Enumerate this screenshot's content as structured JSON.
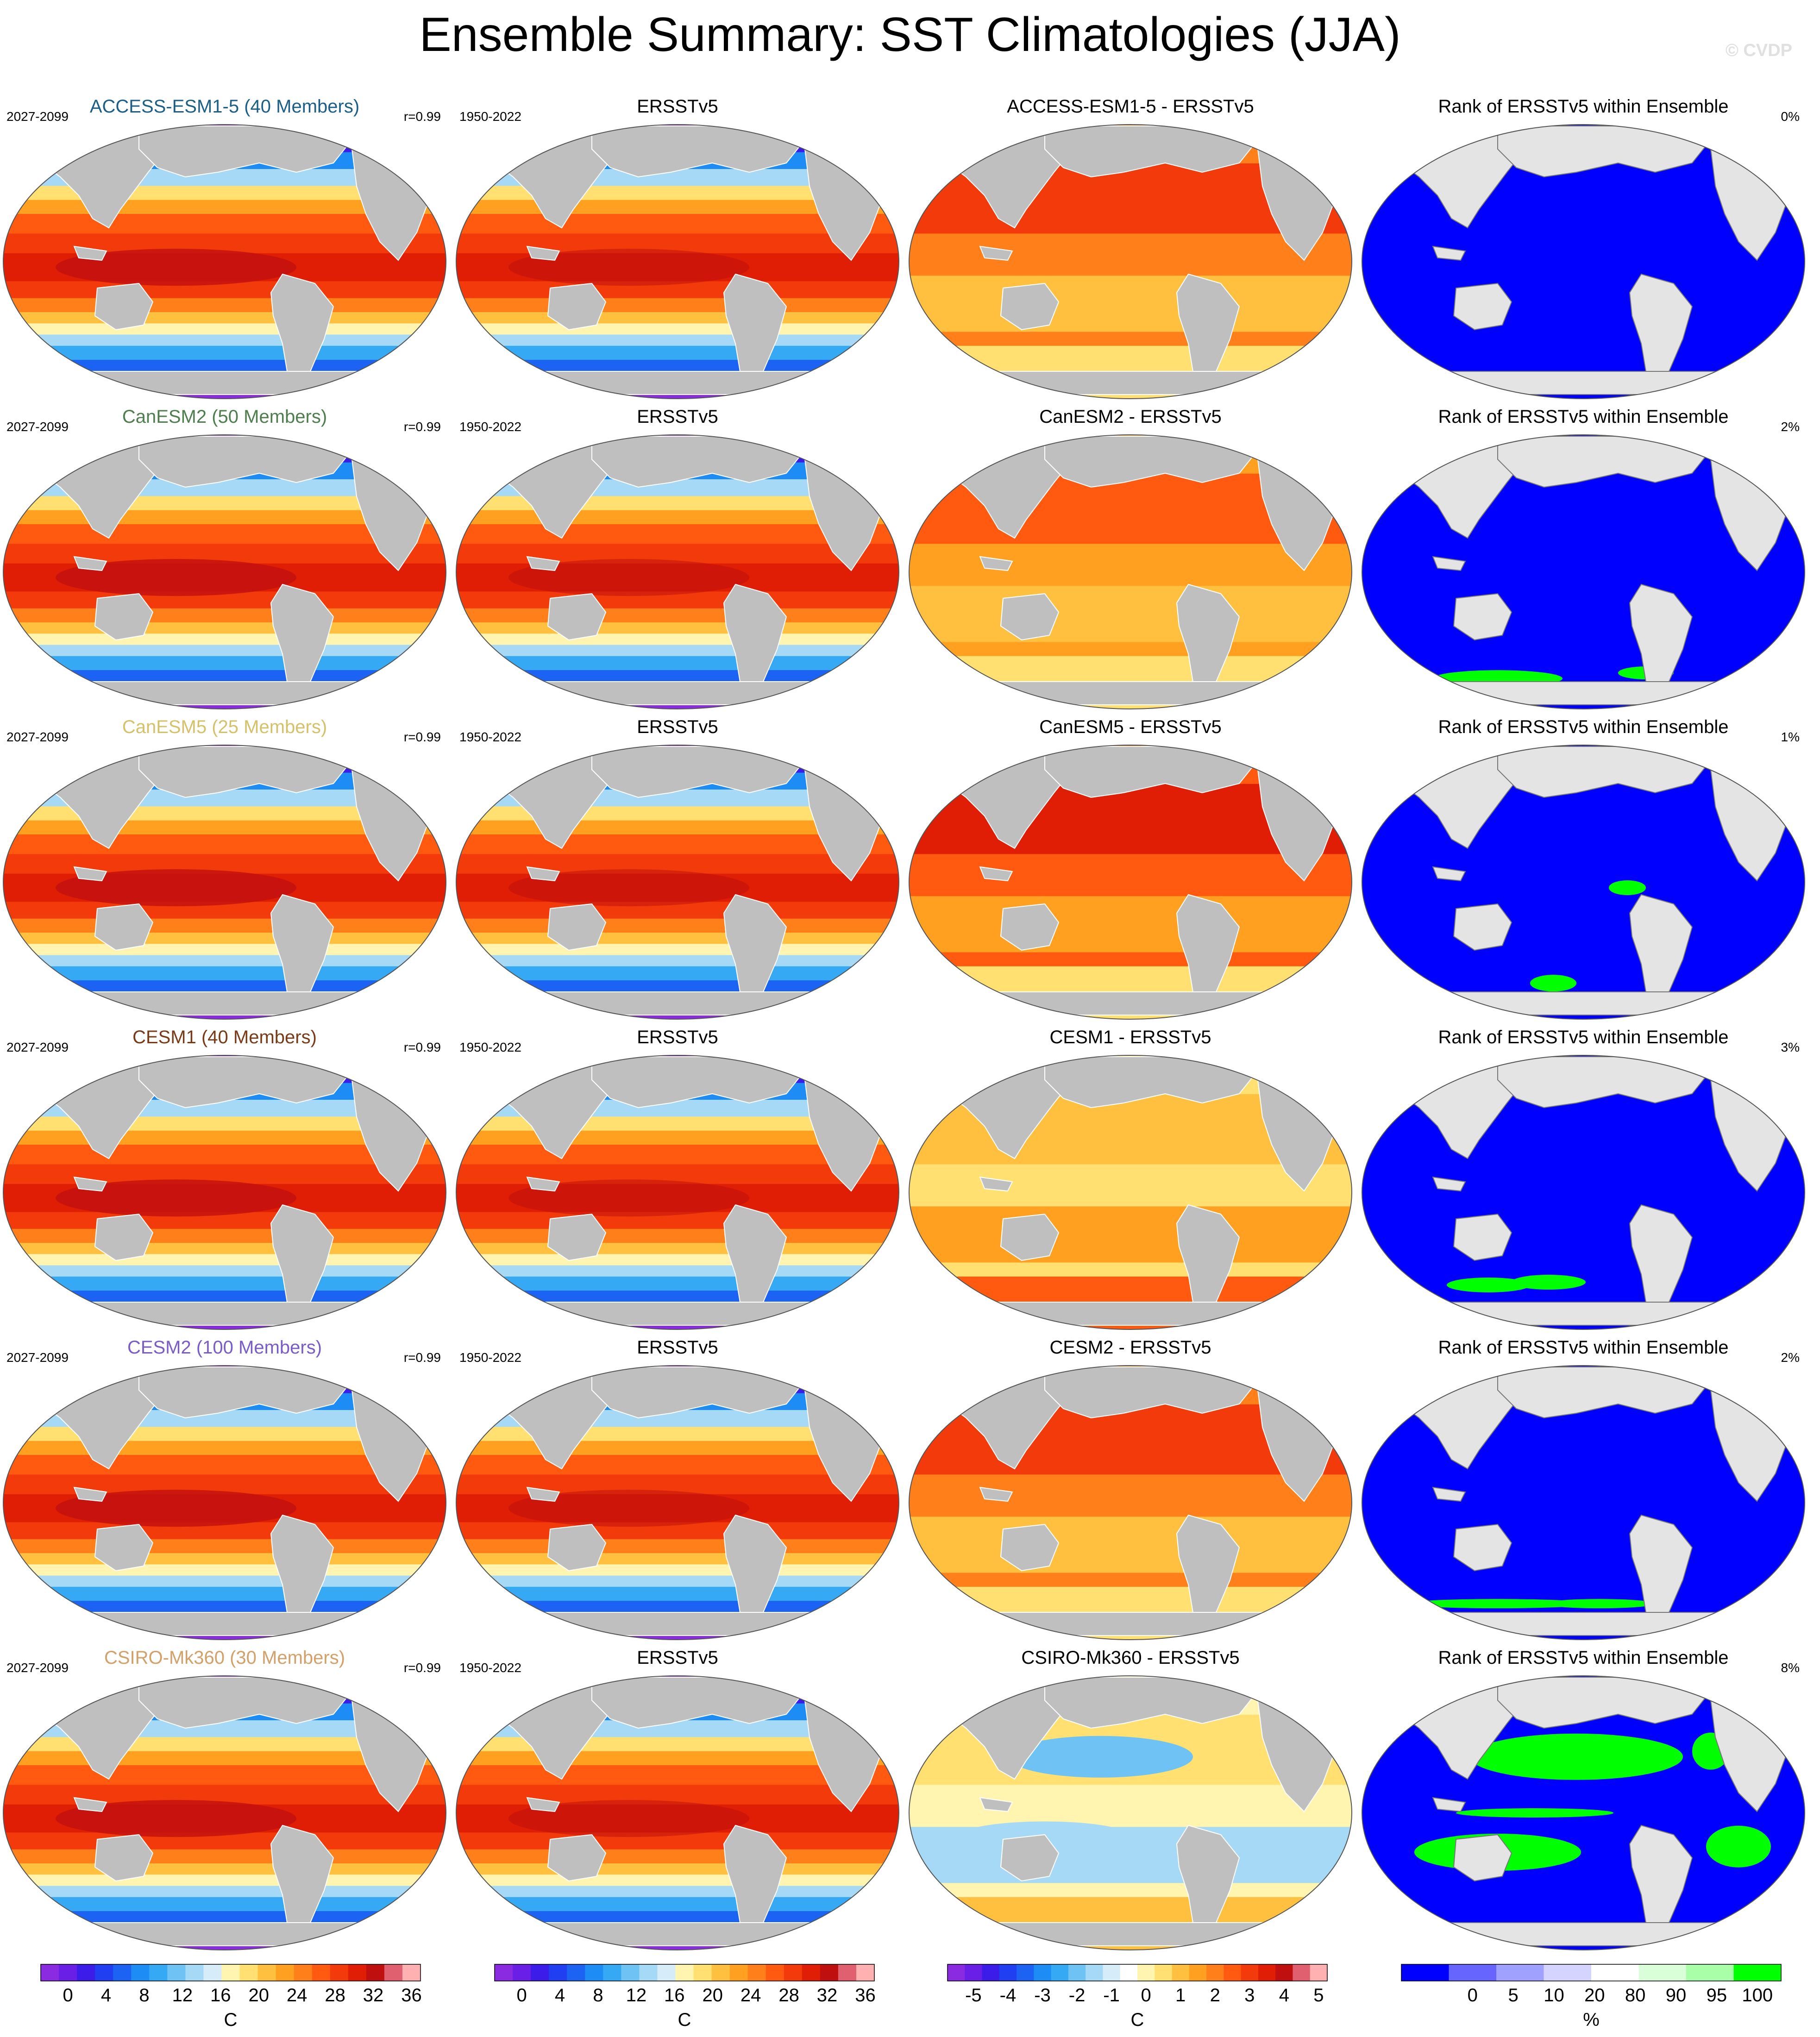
{
  "title": "Ensemble Summary: SST Climatologies (JJA)",
  "credit": "© CVDP",
  "obs_name": "ERSSTv5",
  "obs_period": "1950-2022",
  "rank_title": "Rank of ERSSTv5 within Ensemble",
  "rows": [
    {
      "model": "ACCESS-ESM1-5 (40 Members)",
      "model_color": "#1b5e87",
      "period": "2027-2099",
      "r": "r=0.99",
      "diff_title": "ACCESS-ESM1-5 - ERSSTv5",
      "rank_pct": "0%"
    },
    {
      "model": "CanESM2 (50 Members)",
      "model_color": "#4e7d4e",
      "period": "2027-2099",
      "r": "r=0.99",
      "diff_title": "CanESM2 - ERSSTv5",
      "rank_pct": "2%"
    },
    {
      "model": "CanESM5 (25 Members)",
      "model_color": "#d4c16a",
      "period": "2027-2099",
      "r": "r=0.99",
      "diff_title": "CanESM5 - ERSSTv5",
      "rank_pct": "1%"
    },
    {
      "model": "CESM1 (40 Members)",
      "model_color": "#7a3a16",
      "period": "2027-2099",
      "r": "r=0.99",
      "diff_title": "CESM1 - ERSSTv5",
      "rank_pct": "3%"
    },
    {
      "model": "CESM2 (100 Members)",
      "model_color": "#7a5cc8",
      "period": "2027-2099",
      "r": "r=0.99",
      "diff_title": "CESM2 - ERSSTv5",
      "rank_pct": "2%"
    },
    {
      "model": "CSIRO-Mk360 (30 Members)",
      "model_color": "#d4a06a",
      "period": "2027-2099",
      "r": "r=0.99",
      "diff_title": "CSIRO-Mk360 - ERSSTv5",
      "rank_pct": "8%"
    }
  ],
  "colorbars": {
    "sst": {
      "unit": "C",
      "labels": [
        "0",
        "4",
        "8",
        "12",
        "16",
        "20",
        "24",
        "28",
        "32",
        "36"
      ],
      "colors": [
        "#8a2be2",
        "#6a1fe6",
        "#3c1ce8",
        "#1f3ff0",
        "#1c63f3",
        "#1e8cf5",
        "#36a9f5",
        "#6fc3f4",
        "#a6d9f6",
        "#d6ecf8",
        "#fff5b0",
        "#ffe070",
        "#ffc040",
        "#ffa020",
        "#ff7f1a",
        "#ff5a10",
        "#f33a0a",
        "#e01e05",
        "#c00f0f",
        "#e06070",
        "#ffb0b0"
      ]
    },
    "diff": {
      "unit": "C",
      "labels": [
        "-5",
        "-4",
        "-3",
        "-2",
        "-1",
        "0",
        "1",
        "2",
        "3",
        "4",
        "5"
      ],
      "colors": [
        "#8a2be2",
        "#6a1fe6",
        "#3c1ce8",
        "#1f3ff0",
        "#1c63f3",
        "#1e8cf5",
        "#36a9f5",
        "#6fc3f4",
        "#a6d9f6",
        "#d6ecf8",
        "#ffffff",
        "#fff5b0",
        "#ffe070",
        "#ffc040",
        "#ffa020",
        "#ff7f1a",
        "#ff5a10",
        "#f33a0a",
        "#e01e05",
        "#c00f0f",
        "#e06070",
        "#ffb0b0"
      ]
    },
    "rank": {
      "unit": "%",
      "labels": [
        "0",
        "5",
        "10",
        "20",
        "80",
        "90",
        "95",
        "100"
      ],
      "colors": [
        "#0000ff",
        "#6666ff",
        "#a0a0ff",
        "#d4d4ff",
        "#ffffff",
        "#d8ffd8",
        "#a8ffa8",
        "#00ff00"
      ]
    }
  },
  "colors": {
    "land": "#bfbfbf",
    "land_rank": "#e4e4e4",
    "rank_blue": "#0000ff",
    "rank_green": "#00ff00"
  }
}
